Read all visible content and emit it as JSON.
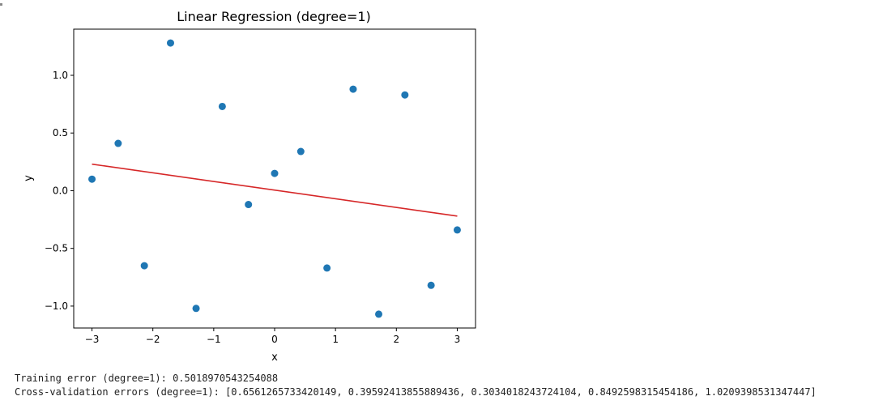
{
  "chart_data": {
    "type": "scatter",
    "title": "Linear Regression (degree=1)",
    "xlabel": "x",
    "ylabel": "y",
    "xlim": [
      -3.3,
      3.3
    ],
    "ylim": [
      -1.19,
      1.4
    ],
    "xticks": [
      -3,
      -2,
      -1,
      0,
      1,
      2,
      3
    ],
    "xtick_labels": [
      "−3",
      "−2",
      "−1",
      "0",
      "1",
      "2",
      "3"
    ],
    "yticks": [
      -1.0,
      -0.5,
      0.0,
      0.5,
      1.0
    ],
    "ytick_labels": [
      "−1.0",
      "−0.5",
      "0.0",
      "0.5",
      "1.0"
    ],
    "grid": false,
    "series": [
      {
        "kind": "scatter",
        "color": "#1f77b4",
        "points": [
          {
            "x": -3.0,
            "y": 0.1
          },
          {
            "x": -2.57,
            "y": 0.41
          },
          {
            "x": -2.14,
            "y": -0.65
          },
          {
            "x": -1.71,
            "y": 1.28
          },
          {
            "x": -1.29,
            "y": -1.02
          },
          {
            "x": -0.86,
            "y": 0.73
          },
          {
            "x": -0.43,
            "y": -0.12
          },
          {
            "x": 0.0,
            "y": 0.15
          },
          {
            "x": 0.43,
            "y": 0.34
          },
          {
            "x": 0.86,
            "y": -0.67
          },
          {
            "x": 1.29,
            "y": 0.88
          },
          {
            "x": 1.71,
            "y": -1.07
          },
          {
            "x": 2.14,
            "y": 0.83
          },
          {
            "x": 2.57,
            "y": -0.82
          },
          {
            "x": 3.0,
            "y": -0.34
          }
        ]
      },
      {
        "kind": "line",
        "color": "#d62728",
        "points": [
          {
            "x": -3.0,
            "y": 0.23
          },
          {
            "x": 3.0,
            "y": -0.22
          }
        ]
      }
    ]
  },
  "output": {
    "training_error": "Training error (degree=1): 0.5018970543254088",
    "cv_errors": "Cross-validation errors (degree=1): [0.6561265733420149, 0.39592413855889436, 0.3034018243724104, 0.8492598315454186, 1.0209398531347447]"
  }
}
